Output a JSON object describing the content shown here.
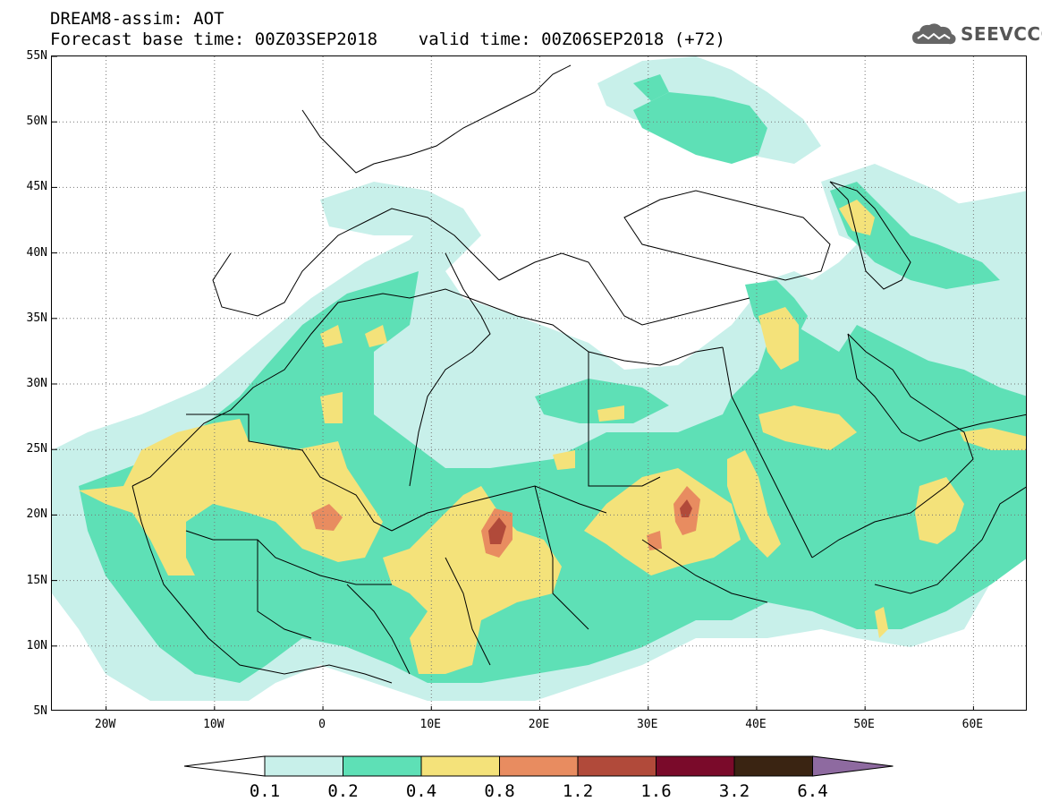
{
  "header": {
    "title_line1": "DREAM8-assim: AOT",
    "title_line2": "Forecast base time: 00Z03SEP2018    valid time: 00Z06SEP2018 (+72)"
  },
  "logo": {
    "text": "SEEVCCC",
    "icon": "cloud-icon"
  },
  "map": {
    "lat_labels": [
      "55N",
      "50N",
      "45N",
      "40N",
      "35N",
      "30N",
      "25N",
      "20N",
      "15N",
      "10N",
      "5N"
    ],
    "lon_labels": [
      "20W",
      "10W",
      "0",
      "10E",
      "20E",
      "30E",
      "40E",
      "50E",
      "60E"
    ],
    "lon_range": [
      -25,
      65
    ],
    "lat_range": [
      5,
      55
    ],
    "gridlines": "dotted",
    "aot_bins": [
      {
        "range": "0.1-0.2",
        "color": "#c8f0ea"
      },
      {
        "range": "0.2-0.4",
        "color": "#5ee0b6"
      },
      {
        "range": "0.4-0.8",
        "color": "#f4e27a"
      },
      {
        "range": "0.8-1.2",
        "color": "#e88c60"
      },
      {
        "range": "1.2-1.6",
        "color": "#b14a3a"
      },
      {
        "range": "1.6-3.2",
        "color": "#7a0a2a"
      },
      {
        "range": "3.2-6.4",
        "color": "#3a2412"
      }
    ]
  },
  "colorbar": {
    "labels": [
      "0.1",
      "0.2",
      "0.4",
      "0.8",
      "1.2",
      "1.6",
      "3.2",
      "6.4"
    ],
    "colors": [
      "#ffffff",
      "#c8f0ea",
      "#5ee0b6",
      "#f4e27a",
      "#e88c60",
      "#b14a3a",
      "#7a0a2a",
      "#3a2412",
      "#8e6aa0"
    ]
  }
}
